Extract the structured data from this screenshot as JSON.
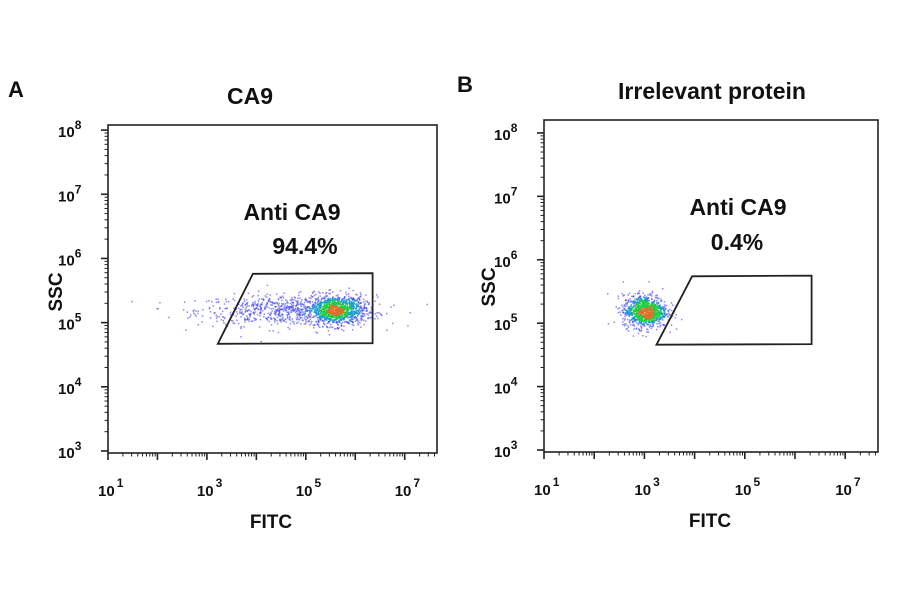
{
  "chart_data": [
    {
      "type": "scatter",
      "panel_label": "A",
      "title": "CA9",
      "xlabel": "FITC",
      "ylabel": "SSC",
      "x_scale": "log",
      "y_scale": "log",
      "xlim": [
        10,
        45000000
      ],
      "ylim": [
        930,
        120000000
      ],
      "x_ticks": [
        {
          "base": "10",
          "exp": "1"
        },
        {
          "base": "10",
          "exp": "3"
        },
        {
          "base": "10",
          "exp": "5"
        },
        {
          "base": "10",
          "exp": "7"
        }
      ],
      "y_ticks": [
        {
          "base": "10",
          "exp": "3"
        },
        {
          "base": "10",
          "exp": "4"
        },
        {
          "base": "10",
          "exp": "5"
        },
        {
          "base": "10",
          "exp": "6"
        },
        {
          "base": "10",
          "exp": "7"
        },
        {
          "base": "10",
          "exp": "8"
        }
      ],
      "gate": {
        "name": "Anti CA9",
        "percent": "94.4%",
        "vertices_log10": [
          [
            3.22,
            4.67
          ],
          [
            3.93,
            5.76
          ],
          [
            6.35,
            5.77
          ],
          [
            6.35,
            4.68
          ]
        ]
      },
      "populations_log10": [
        {
          "x_center": 4.6,
          "y_center": 5.2,
          "x_sd": 0.9,
          "y_sd": 0.12,
          "count": 700
        },
        {
          "x_center": 5.6,
          "y_center": 5.2,
          "x_sd": 0.3,
          "y_sd": 0.12,
          "count": 900
        }
      ],
      "grid": false
    },
    {
      "type": "scatter",
      "panel_label": "B",
      "title": "Irrelevant protein",
      "xlabel": "FITC",
      "ylabel": "SSC",
      "x_scale": "log",
      "y_scale": "log",
      "xlim": [
        10,
        45000000
      ],
      "ylim": [
        930,
        160000000
      ],
      "x_ticks": [
        {
          "base": "10",
          "exp": "1"
        },
        {
          "base": "10",
          "exp": "3"
        },
        {
          "base": "10",
          "exp": "5"
        },
        {
          "base": "10",
          "exp": "7"
        }
      ],
      "y_ticks": [
        {
          "base": "10",
          "exp": "3"
        },
        {
          "base": "10",
          "exp": "4"
        },
        {
          "base": "10",
          "exp": "5"
        },
        {
          "base": "10",
          "exp": "6"
        },
        {
          "base": "10",
          "exp": "7"
        },
        {
          "base": "10",
          "exp": "8"
        }
      ],
      "gate": {
        "name": "Anti CA9",
        "percent": "0.4%",
        "vertices_log10": [
          [
            3.24,
            4.66
          ],
          [
            3.95,
            5.74
          ],
          [
            6.33,
            5.75
          ],
          [
            6.33,
            4.67
          ]
        ]
      },
      "populations_log10": [
        {
          "x_center": 3.0,
          "y_center": 5.2,
          "x_sd": 0.22,
          "y_sd": 0.13,
          "count": 900
        }
      ],
      "grid": false
    }
  ],
  "colors": {
    "axis": "#222222",
    "gate": "#222222",
    "low_density": "#3a3af0",
    "mid_density": "#22cc44",
    "high_density": "#e0702a"
  }
}
